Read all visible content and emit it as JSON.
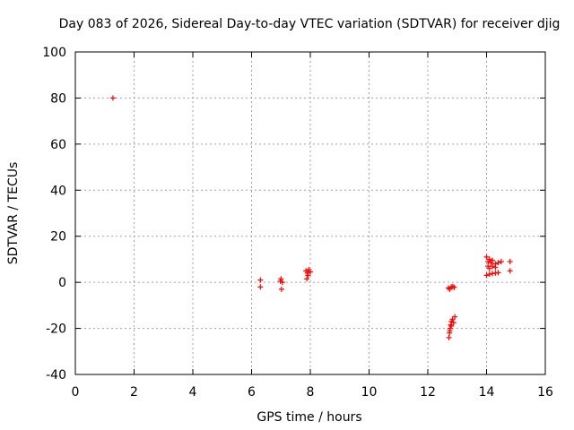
{
  "chart_data": {
    "type": "scatter",
    "title": "Day 083 of 2026, Sidereal Day-to-day VTEC variation (SDTVAR) for receiver djig",
    "xlabel": "GPS time / hours",
    "ylabel": "SDTVAR / TECUs",
    "xlim": [
      0,
      16
    ],
    "ylim": [
      -40,
      100
    ],
    "xticks": [
      "0",
      "2",
      "4",
      "6",
      "8",
      "10",
      "12",
      "14",
      "16"
    ],
    "yticks": [
      "-40",
      "-20",
      "0",
      "20",
      "40",
      "60",
      "80",
      "100"
    ],
    "grid": true,
    "marker_color": "#ff0000",
    "series": [
      {
        "name": "SDTVAR",
        "points": [
          [
            1.28,
            80
          ],
          [
            6.3,
            1
          ],
          [
            6.3,
            -2
          ],
          [
            6.98,
            0.5
          ],
          [
            7.0,
            1.5
          ],
          [
            7.02,
            -3
          ],
          [
            7.05,
            0
          ],
          [
            7.85,
            5
          ],
          [
            7.9,
            4
          ],
          [
            7.92,
            3
          ],
          [
            7.95,
            5.5
          ],
          [
            7.88,
            1.5
          ],
          [
            8.0,
            4.5
          ],
          [
            12.7,
            -2.5
          ],
          [
            12.75,
            -3
          ],
          [
            12.8,
            -2
          ],
          [
            12.85,
            -1.8
          ],
          [
            12.9,
            -2.2
          ],
          [
            12.72,
            -24
          ],
          [
            12.74,
            -22
          ],
          [
            12.76,
            -20
          ],
          [
            12.78,
            -18.5
          ],
          [
            12.8,
            -17
          ],
          [
            12.84,
            -16
          ],
          [
            12.88,
            -17.5
          ],
          [
            12.92,
            -15
          ],
          [
            12.75,
            -21
          ],
          [
            12.8,
            -19
          ],
          [
            14.0,
            11
          ],
          [
            14.05,
            9
          ],
          [
            14.1,
            10
          ],
          [
            14.15,
            8.5
          ],
          [
            14.2,
            9.5
          ],
          [
            14.3,
            8
          ],
          [
            14.4,
            8.5
          ],
          [
            14.5,
            9
          ],
          [
            14.05,
            7
          ],
          [
            14.1,
            6
          ],
          [
            14.2,
            7
          ],
          [
            14.3,
            6.5
          ],
          [
            14.0,
            3
          ],
          [
            14.1,
            3.5
          ],
          [
            14.2,
            3.8
          ],
          [
            14.3,
            4
          ],
          [
            14.4,
            4.2
          ],
          [
            14.8,
            9
          ],
          [
            14.8,
            5
          ]
        ]
      }
    ]
  }
}
